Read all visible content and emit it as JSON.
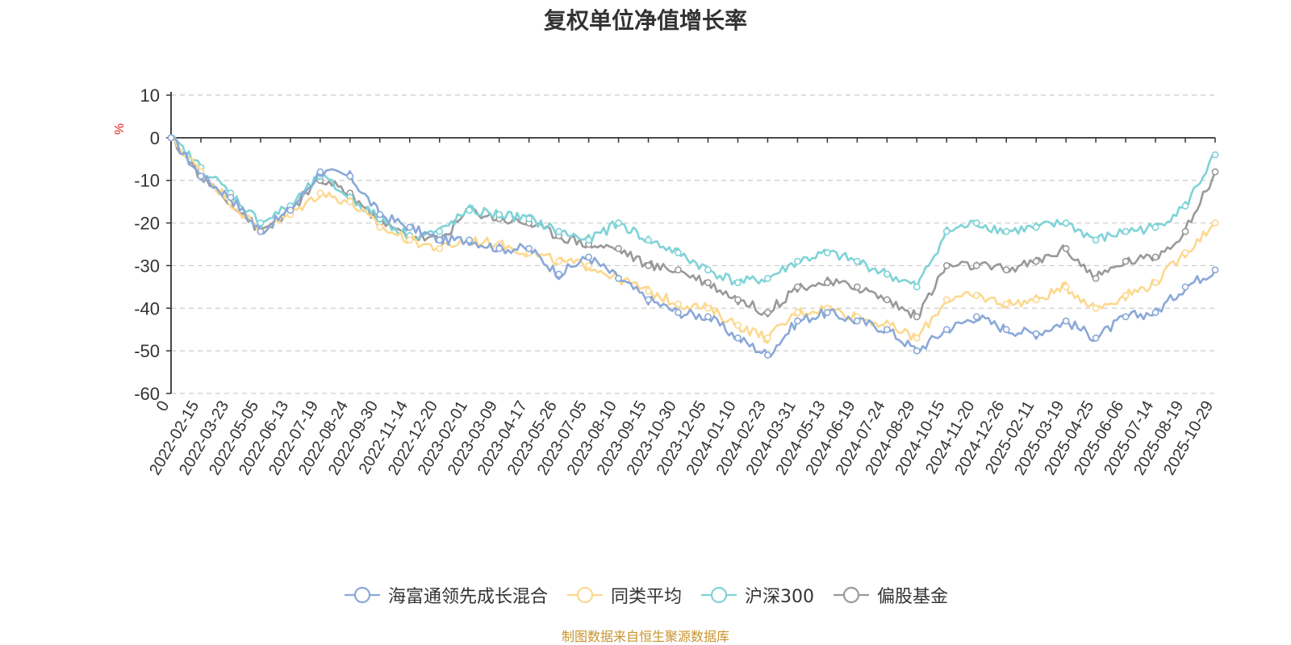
{
  "title": "复权单位净值增长率",
  "source": "制图数据来自恒生聚源数据库",
  "chart_data": {
    "type": "line",
    "title": "复权单位净值增长率",
    "ylabel": "%",
    "ylim": [
      -60,
      10
    ],
    "yticks": [
      10,
      0,
      -10,
      -20,
      -30,
      -40,
      -50,
      -60
    ],
    "ytick_labels": [
      "10",
      "0",
      "-10",
      "-20",
      "-30",
      "-40",
      "-50",
      "-60"
    ],
    "grid": true,
    "legend_position": "bottom",
    "categories": [
      "0",
      "2022-02-15",
      "2022-03-23",
      "2022-05-05",
      "2022-06-13",
      "2022-07-19",
      "2022-08-24",
      "2022-09-30",
      "2022-11-14",
      "2022-12-20",
      "2023-02-01",
      "2023-03-09",
      "2023-04-17",
      "2023-05-26",
      "2023-07-05",
      "2023-08-10",
      "2023-09-15",
      "2023-10-30",
      "2023-12-05",
      "2024-01-10",
      "2024-02-23",
      "2024-03-31",
      "2024-05-13",
      "2024-06-19",
      "2024-07-24",
      "2024-08-29",
      "2024-10-15",
      "2024-11-20",
      "2024-12-26",
      "2025-02-11",
      "2025-03-19",
      "2025-04-25",
      "2025-06-06",
      "2025-07-14",
      "2025-08-19",
      "2025-10-29"
    ],
    "series": [
      {
        "name": "海富通领先成长混合",
        "color": "#8aa8d8",
        "values": [
          0,
          -9,
          -14,
          -22,
          -17,
          -8,
          -9,
          -18,
          -21,
          -24,
          -24,
          -26,
          -26,
          -32,
          -28,
          -33,
          -38,
          -41,
          -42,
          -47,
          -51,
          -43,
          -41,
          -43,
          -45,
          -50,
          -45,
          -42,
          -45,
          -46,
          -43,
          -47,
          -42,
          -41,
          -35,
          -31
        ]
      },
      {
        "name": "同类平均",
        "color": "#fcd88e",
        "values": [
          0,
          -8,
          -15,
          -22,
          -18,
          -13,
          -15,
          -21,
          -24,
          -26,
          -24,
          -25,
          -27,
          -29,
          -30,
          -33,
          -36,
          -39,
          -40,
          -44,
          -47,
          -41,
          -40,
          -42,
          -44,
          -47,
          -38,
          -37,
          -39,
          -38,
          -35,
          -40,
          -37,
          -34,
          -27,
          -20
        ]
      },
      {
        "name": "沪深300",
        "color": "#7ed3d7",
        "values": [
          0,
          -7,
          -13,
          -20,
          -16,
          -9,
          -14,
          -19,
          -23,
          -22,
          -17,
          -18,
          -19,
          -22,
          -24,
          -20,
          -24,
          -27,
          -31,
          -34,
          -33,
          -29,
          -27,
          -29,
          -32,
          -35,
          -22,
          -20,
          -22,
          -21,
          -20,
          -24,
          -22,
          -21,
          -16,
          -4
        ]
      },
      {
        "name": "偏股基金",
        "color": "#999999",
        "values": [
          0,
          -9,
          -15,
          -22,
          -17,
          -10,
          -13,
          -20,
          -23,
          -24,
          -17,
          -19,
          -20,
          -23,
          -25,
          -26,
          -30,
          -31,
          -34,
          -38,
          -41,
          -35,
          -34,
          -35,
          -38,
          -42,
          -30,
          -30,
          -31,
          -29,
          -26,
          -33,
          -29,
          -28,
          -22,
          -8
        ]
      }
    ]
  }
}
